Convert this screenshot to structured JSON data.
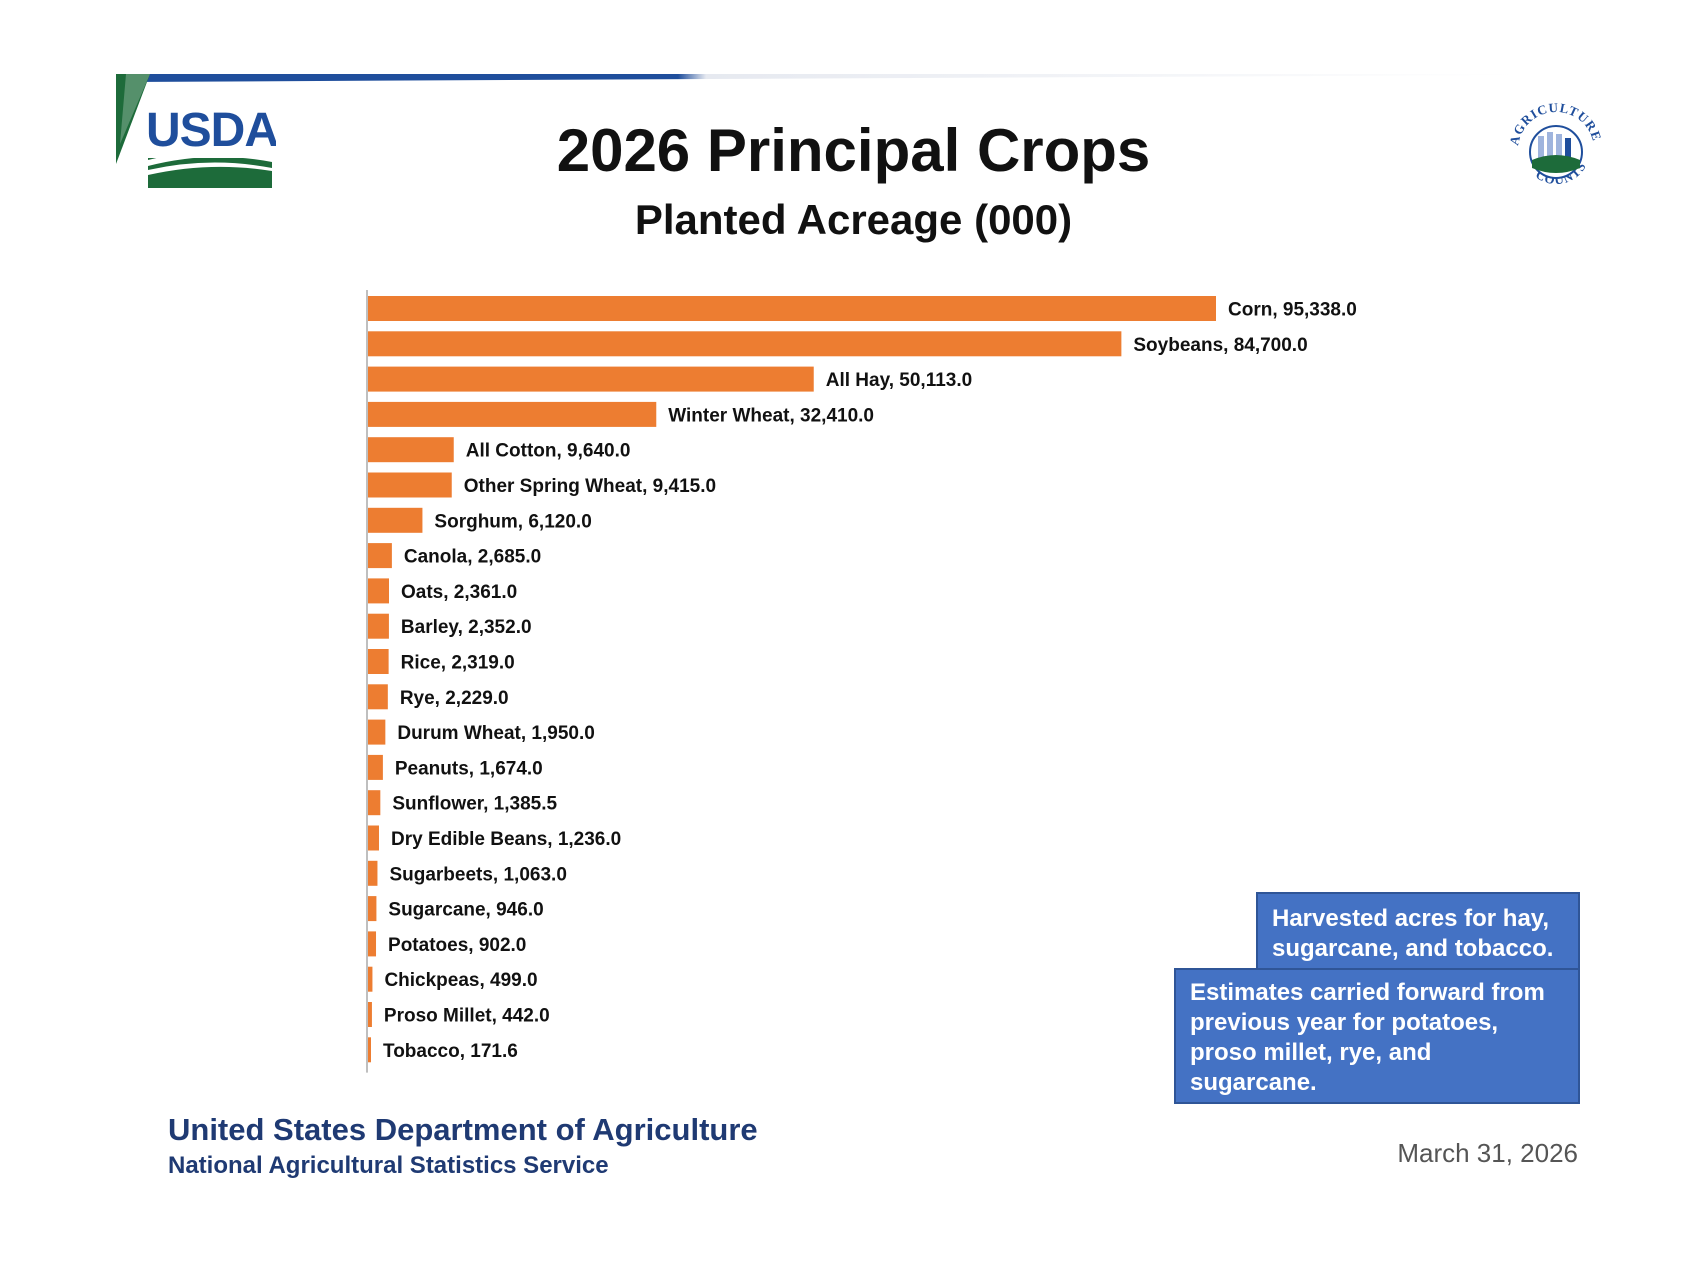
{
  "header": {
    "logo_text": "USDA",
    "badge_text_top": "AGRICULTURE",
    "badge_text_bottom": "COUNTS"
  },
  "chart_data": {
    "type": "bar",
    "orientation": "horizontal",
    "title": "2026 Principal Crops",
    "subtitle": "Planted Acreage (000)",
    "xlabel": "",
    "ylabel": "",
    "grid": false,
    "legend": "none",
    "bar_color": "#ed7d31",
    "label_separator": ", ",
    "categories": [
      "Corn",
      "Soybeans",
      "All Hay",
      "Winter Wheat",
      "All Cotton",
      "Other Spring Wheat",
      "Sorghum",
      "Canola",
      "Oats",
      "Barley",
      "Rice",
      "Rye",
      "Durum Wheat",
      "Peanuts",
      "Sunflower",
      "Dry Edible Beans",
      "Sugarbeets",
      "Sugarcane",
      "Potatoes",
      "Chickpeas",
      "Proso Millet",
      "Tobacco"
    ],
    "values": [
      95338.0,
      84700.0,
      50113.0,
      32410.0,
      9640.0,
      9415.0,
      6120.0,
      2685.0,
      2361.0,
      2352.0,
      2319.0,
      2229.0,
      1950.0,
      1674.0,
      1385.5,
      1236.0,
      1063.0,
      946.0,
      902.0,
      499.0,
      442.0,
      171.6
    ],
    "value_labels": [
      "95,338.0",
      "84,700.0",
      "50,113.0",
      "32,410.0",
      "9,640.0",
      "9,415.0",
      "6,120.0",
      "2,685.0",
      "2,361.0",
      "2,352.0",
      "2,319.0",
      "2,229.0",
      "1,950.0",
      "1,674.0",
      "1,385.5",
      "1,236.0",
      "1,063.0",
      "946.0",
      "902.0",
      "499.0",
      "442.0",
      "171.6"
    ],
    "xlim": [
      0,
      95338.0
    ]
  },
  "notes": {
    "harvested": "Harvested acres for hay,\nsugarcane, and tobacco.",
    "carried_forward": "Estimates carried forward from\nprevious year for potatoes,\nproso millet, rye, and\nsugarcane."
  },
  "footer": {
    "organization": "United States Department of Agriculture",
    "agency": "National Agricultural Statistics Service",
    "date": "March 31, 2026"
  },
  "colors": {
    "bar": "#ed7d31",
    "note_fill": "#4472c4",
    "footer_text": "#1f3a73",
    "usda_blue": "#1f4e9c",
    "usda_green": "#1d6b3a"
  }
}
